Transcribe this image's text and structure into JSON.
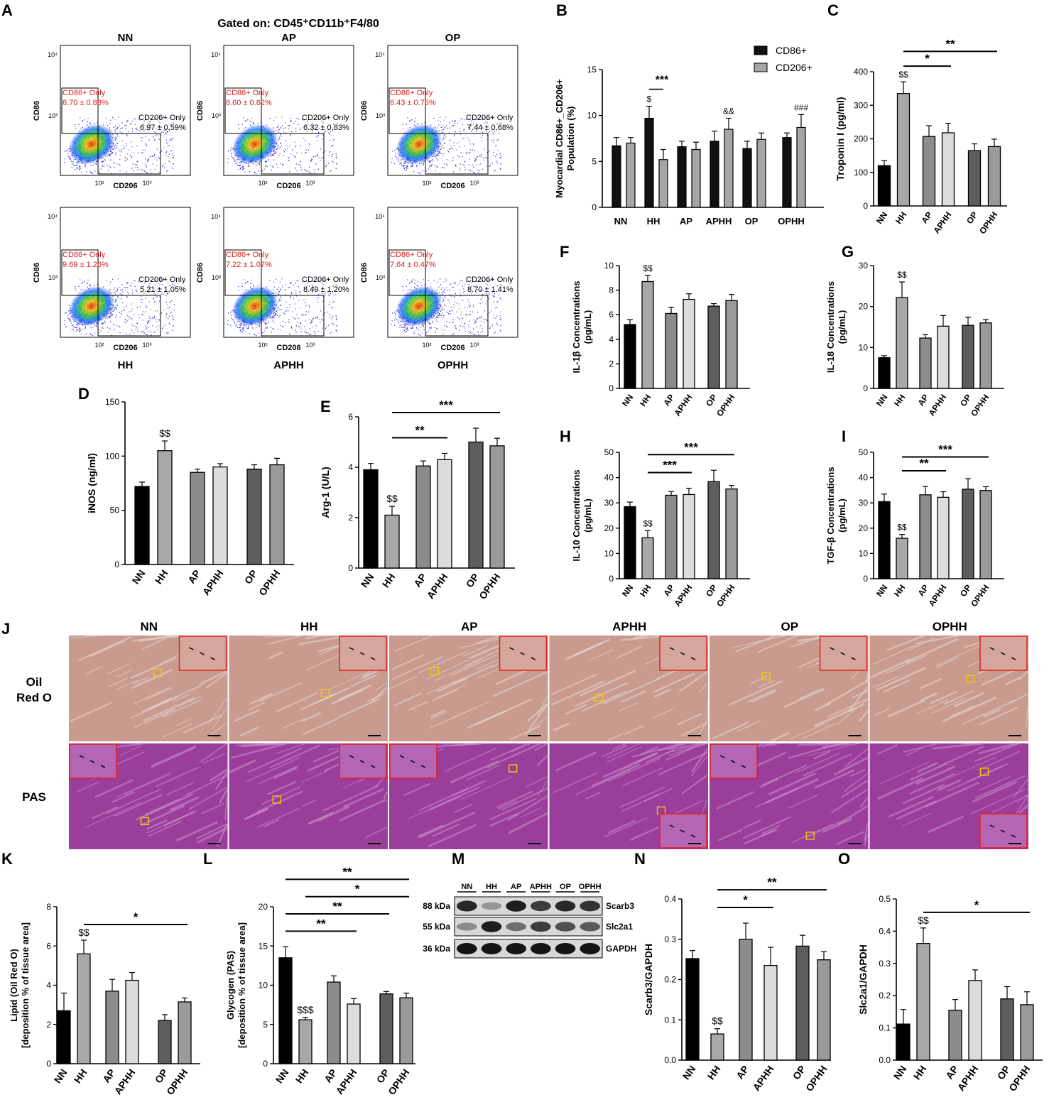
{
  "figure": {
    "gated_title": "Gated on: CD45⁺CD11b⁺F4/80",
    "panel_letters": [
      "A",
      "B",
      "C",
      "D",
      "E",
      "F",
      "G",
      "H",
      "I",
      "J",
      "K",
      "L",
      "M",
      "N",
      "O"
    ]
  },
  "flow": {
    "x_label": "CD206",
    "y_label": "CD86",
    "x_ticks": [
      "10²",
      "10³"
    ],
    "y_ticks": [
      "10³",
      "10⁴"
    ],
    "cd86_label": "CD86+ Only",
    "cd206_label": "CD206+ Only",
    "plots": [
      {
        "top": "NN",
        "bottom": "",
        "cd86": "6.70 ± 0.88%",
        "cd206": "6.97 ± 0.59%"
      },
      {
        "top": "AP",
        "bottom": "",
        "cd86": "6.60 ± 0.62%",
        "cd206": "6.32 ± 0.83%"
      },
      {
        "top": "OP",
        "bottom": "",
        "cd86": "6.43 ± 0.75%",
        "cd206": "7.44 ± 0.68%"
      },
      {
        "top": "",
        "bottom": "HH",
        "cd86": "9.69 ± 1.26%",
        "cd206": "5.21 ± 1.05%"
      },
      {
        "top": "",
        "bottom": "APHH",
        "cd86": "7.22 ± 1.07%",
        "cd206": "8.49 ± 1.20%"
      },
      {
        "top": "",
        "bottom": "OPHH",
        "cd86": "7.64 ± 0.47%",
        "cd206": "8.70 ± 1.41%"
      }
    ]
  },
  "chart_data": [
    {
      "id": "B",
      "type": "bar",
      "ylabel": "Myocardial CD86+_CD206+ Population (%)",
      "ylabel_lines": [
        "Myocardial CD86+_CD206+",
        "Population (%)"
      ],
      "categories": [
        "NN",
        "HH",
        "AP",
        "APHH",
        "OP",
        "OPHH"
      ],
      "ylim": [
        0,
        15
      ],
      "yticks": [
        0,
        5,
        10,
        15
      ],
      "legend": [
        "CD86+",
        "CD206+"
      ],
      "series": [
        {
          "name": "CD86+",
          "values": [
            6.7,
            9.7,
            6.6,
            7.2,
            6.4,
            7.6
          ],
          "err": [
            0.9,
            1.3,
            0.6,
            1.1,
            0.8,
            0.5
          ]
        },
        {
          "name": "CD206+",
          "values": [
            7.0,
            5.2,
            6.3,
            8.5,
            7.4,
            8.7
          ],
          "err": [
            0.6,
            1.1,
            0.8,
            1.2,
            0.7,
            1.4
          ]
        }
      ],
      "annotations": [
        {
          "text": "***",
          "type": "bracket",
          "cat": 1
        },
        {
          "text": "$",
          "cat": 1,
          "series": 0
        },
        {
          "text": "&&",
          "cat": 3,
          "series": 1
        },
        {
          "text": "###",
          "cat": 5,
          "series": 1
        }
      ]
    },
    {
      "id": "C",
      "type": "bar",
      "ylabel": "Troponin I (pg/ml)",
      "categories": [
        "NN",
        "HH",
        "AP",
        "APHH",
        "OP",
        "OPHH"
      ],
      "values": [
        120,
        335,
        207,
        218,
        165,
        177
      ],
      "err": [
        15,
        35,
        32,
        28,
        20,
        22
      ],
      "ylim": [
        0,
        400
      ],
      "yticks": [
        0,
        100,
        200,
        300,
        400
      ],
      "annotations": [
        {
          "text": "$$",
          "cat": 1
        }
      ],
      "brackets": [
        {
          "from": 1,
          "to": 3,
          "text": "*"
        },
        {
          "from": 1,
          "to": 5,
          "text": "**"
        }
      ]
    },
    {
      "id": "D",
      "type": "bar",
      "ylabel": "iNOS (ng/ml)",
      "categories": [
        "NN",
        "HH",
        "AP",
        "APHH",
        "OP",
        "OPHH"
      ],
      "values": [
        72,
        105,
        85,
        90,
        88,
        92
      ],
      "err": [
        4,
        9,
        3,
        3,
        4,
        6
      ],
      "ylim": [
        0,
        150
      ],
      "yticks": [
        0,
        50,
        100,
        150
      ],
      "annotations": [
        {
          "text": "$$",
          "cat": 1
        }
      ],
      "brackets": []
    },
    {
      "id": "E",
      "type": "bar",
      "ylabel": "Arg-1 (U/L)",
      "categories": [
        "NN",
        "HH",
        "AP",
        "APHH",
        "OP",
        "OPHH"
      ],
      "values": [
        3.9,
        2.1,
        4.05,
        4.3,
        5.0,
        4.85
      ],
      "err": [
        0.25,
        0.35,
        0.2,
        0.25,
        0.55,
        0.3
      ],
      "ylim": [
        0,
        6
      ],
      "yticks": [
        0,
        2,
        4,
        6
      ],
      "annotations": [
        {
          "text": "$$",
          "cat": 1
        }
      ],
      "brackets": [
        {
          "from": 1,
          "to": 3,
          "text": "**"
        },
        {
          "from": 1,
          "to": 5,
          "text": "***"
        }
      ]
    },
    {
      "id": "F",
      "type": "bar",
      "ylabel": "IL-1β Concentrations (pg/mL)",
      "ylabel_lines": [
        "IL-1β Concentrations",
        "(pg/mL)"
      ],
      "categories": [
        "NN",
        "HH",
        "AP",
        "APHH",
        "OP",
        "OPHH"
      ],
      "values": [
        5.2,
        8.7,
        6.1,
        7.25,
        6.7,
        7.15
      ],
      "err": [
        0.4,
        0.5,
        0.5,
        0.45,
        0.2,
        0.5
      ],
      "ylim": [
        0,
        10
      ],
      "yticks": [
        0,
        2,
        4,
        6,
        8,
        10
      ],
      "annotations": [
        {
          "text": "$$",
          "cat": 1
        }
      ],
      "brackets": []
    },
    {
      "id": "G",
      "type": "bar",
      "ylabel": "IL-18 Concentrations (pg/mL)",
      "ylabel_lines": [
        "IL-18 Concentrations",
        "(pg/mL)"
      ],
      "categories": [
        "NN",
        "HH",
        "AP",
        "APHH",
        "OP",
        "OPHH"
      ],
      "values": [
        7.5,
        22.2,
        12.3,
        15.2,
        15.4,
        16.0
      ],
      "err": [
        0.5,
        3.8,
        0.8,
        2.6,
        2.0,
        0.8
      ],
      "ylim": [
        0,
        30
      ],
      "yticks": [
        0,
        10,
        20,
        30
      ],
      "annotations": [
        {
          "text": "$$",
          "cat": 1
        }
      ],
      "brackets": []
    },
    {
      "id": "H",
      "type": "bar",
      "ylabel": "IL-10 Concentrations (pg/mL)",
      "ylabel_lines": [
        "IL-10 Concentrations",
        "(pg/mL)"
      ],
      "categories": [
        "NN",
        "HH",
        "AP",
        "APHH",
        "OP",
        "OPHH"
      ],
      "values": [
        28.5,
        16.2,
        33.0,
        33.3,
        38.4,
        35.5
      ],
      "err": [
        1.8,
        2.8,
        1.5,
        2.5,
        4.5,
        1.4
      ],
      "ylim": [
        0,
        50
      ],
      "yticks": [
        0,
        10,
        20,
        30,
        40,
        50
      ],
      "annotations": [
        {
          "text": "$$",
          "cat": 1
        }
      ],
      "brackets": [
        {
          "from": 1,
          "to": 3,
          "text": "***"
        },
        {
          "from": 1,
          "to": 5,
          "text": "***"
        }
      ]
    },
    {
      "id": "I",
      "type": "bar",
      "ylabel": "TGF-β Concentrations (pg/mL)",
      "ylabel_lines": [
        "TGF-β Concentrations",
        "(pg/mL)"
      ],
      "categories": [
        "NN",
        "HH",
        "AP",
        "APHH",
        "OP",
        "OPHH"
      ],
      "values": [
        30.5,
        16.0,
        33.2,
        32.2,
        35.4,
        34.9
      ],
      "err": [
        3.0,
        1.5,
        3.3,
        2.2,
        4.2,
        1.5
      ],
      "ylim": [
        0,
        50
      ],
      "yticks": [
        0,
        10,
        20,
        30,
        40,
        50
      ],
      "annotations": [
        {
          "text": "$$",
          "cat": 1
        }
      ],
      "brackets": [
        {
          "from": 1,
          "to": 3,
          "text": "**"
        },
        {
          "from": 1,
          "to": 5,
          "text": "***"
        }
      ]
    },
    {
      "id": "K",
      "type": "bar",
      "ylabel": "Lipid (Oil Red O) [deposition % of tissue area]",
      "ylabel_lines": [
        "Lipid (Oil Red O)",
        "[deposition % of tissue area]"
      ],
      "categories": [
        "NN",
        "HH",
        "AP",
        "APHH",
        "OP",
        "OPHH"
      ],
      "values": [
        2.7,
        5.6,
        3.7,
        4.25,
        2.2,
        3.15
      ],
      "err": [
        0.9,
        0.7,
        0.6,
        0.4,
        0.3,
        0.2
      ],
      "ylim": [
        0,
        8
      ],
      "yticks": [
        0,
        2,
        4,
        6,
        8
      ],
      "annotations": [
        {
          "text": "$$",
          "cat": 1
        }
      ],
      "brackets": [
        {
          "from": 1,
          "to": 5,
          "text": "*"
        }
      ]
    },
    {
      "id": "L",
      "type": "bar",
      "ylabel": "Glycogen (PAS) [deposition % of tissue area]",
      "ylabel_lines": [
        "Glycogen (PAS)",
        "[deposition % of tissue area]"
      ],
      "categories": [
        "NN",
        "HH",
        "AP",
        "APHH",
        "OP",
        "OPHH"
      ],
      "values": [
        13.5,
        5.6,
        10.4,
        7.6,
        8.9,
        8.4
      ],
      "err": [
        1.4,
        0.3,
        0.8,
        0.7,
        0.3,
        0.6
      ],
      "ylim": [
        0,
        20
      ],
      "yticks": [
        0,
        5,
        10,
        15,
        20
      ],
      "annotations": [
        {
          "text": "$$$",
          "cat": 1
        }
      ],
      "brackets": [
        {
          "from": 0,
          "to": 5,
          "text": "**"
        },
        {
          "from": 0,
          "to": 4,
          "text": "**"
        },
        {
          "from": 0,
          "to": 3,
          "text": "**"
        },
        {
          "from": 1,
          "to": 5,
          "text": "*"
        }
      ]
    },
    {
      "id": "N",
      "type": "bar",
      "ylabel": "Scarb3/GAPDH",
      "categories": [
        "NN",
        "HH",
        "AP",
        "APHH",
        "OP",
        "OPHH"
      ],
      "values": [
        0.252,
        0.065,
        0.3,
        0.235,
        0.283,
        0.249
      ],
      "err": [
        0.02,
        0.013,
        0.04,
        0.045,
        0.027,
        0.02
      ],
      "ylim": [
        0,
        0.4
      ],
      "yticks": [
        0.0,
        0.1,
        0.2,
        0.3,
        0.4
      ],
      "annotations": [
        {
          "text": "$$",
          "cat": 1
        }
      ],
      "brackets": [
        {
          "from": 1,
          "to": 3,
          "text": "*"
        },
        {
          "from": 1,
          "to": 5,
          "text": "**"
        }
      ]
    },
    {
      "id": "O",
      "type": "bar",
      "ylabel": "Slc2a1/GAPDH",
      "categories": [
        "NN",
        "HH",
        "AP",
        "APHH",
        "OP",
        "OPHH"
      ],
      "values": [
        0.112,
        0.362,
        0.155,
        0.247,
        0.19,
        0.172
      ],
      "err": [
        0.045,
        0.048,
        0.033,
        0.033,
        0.038,
        0.04
      ],
      "ylim": [
        0,
        0.5
      ],
      "yticks": [
        0.0,
        0.1,
        0.2,
        0.3,
        0.4,
        0.5
      ],
      "annotations": [
        {
          "text": "$$",
          "cat": 1
        }
      ],
      "brackets": [
        {
          "from": 1,
          "to": 5,
          "text": "*"
        }
      ]
    }
  ],
  "histology": {
    "groups": [
      "NN",
      "HH",
      "AP",
      "APHH",
      "OP",
      "OPHH"
    ],
    "rows": [
      {
        "label_lines": [
          "Oil",
          "Red O"
        ],
        "colors": [
          "#c99a8e",
          "#d4a69c"
        ]
      },
      {
        "label_lines": [
          "PAS"
        ],
        "colors": [
          "#9b3e9b",
          "#b465b4"
        ]
      }
    ]
  },
  "western": {
    "lanes": [
      "NN",
      "HH",
      "AP",
      "APHH",
      "OP",
      "OPHH"
    ],
    "bands": [
      {
        "kda": "88 kDa",
        "name": "Scarb3",
        "intensity": [
          0.9,
          0.35,
          0.95,
          0.8,
          0.9,
          0.85
        ]
      },
      {
        "kda": "55 kDa",
        "name": "Slc2a1",
        "intensity": [
          0.4,
          0.95,
          0.55,
          0.8,
          0.7,
          0.65
        ]
      },
      {
        "kda": "36 kDa",
        "name": "GAPDH",
        "intensity": [
          1,
          1,
          1,
          1,
          1,
          1
        ]
      }
    ]
  },
  "colors": {
    "NN": "#000000",
    "HH": "#a6a6a6",
    "AP": "#8c8c8c",
    "APHH": "#dcdcdc",
    "OP": "#5e5e5e",
    "OPHH": "#a6a6a6",
    "CD86": "#111111",
    "CD206": "#a6a6a6",
    "flow_red": "#e0201e"
  }
}
